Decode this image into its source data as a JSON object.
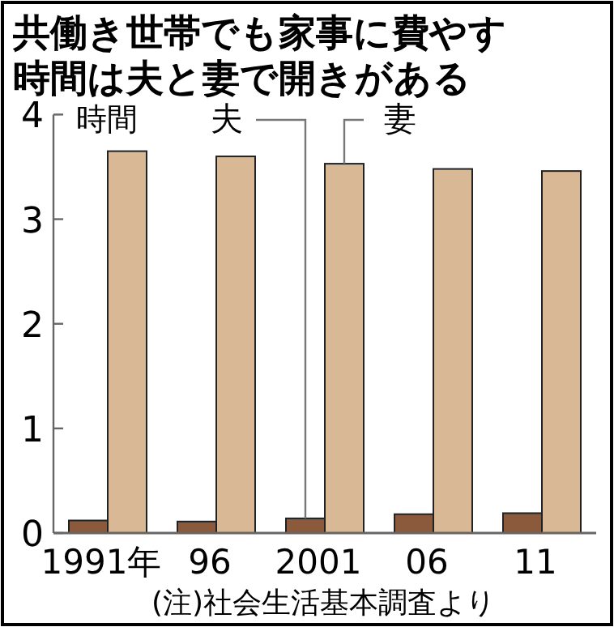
{
  "chart_data": {
    "type": "bar",
    "title": "共働き世帯でも家事に費やす時間は夫と妻で開きがある",
    "ylabel": "時間",
    "categories": [
      "1991年",
      "96",
      "2001",
      "06",
      "11"
    ],
    "series": [
      {
        "name": "夫",
        "color": "#8b5a3c",
        "values": [
          0.12,
          0.11,
          0.14,
          0.18,
          0.19
        ]
      },
      {
        "name": "妻",
        "color": "#d8b895",
        "values": [
          3.65,
          3.6,
          3.53,
          3.48,
          3.46
        ]
      }
    ],
    "ylim": [
      0,
      4
    ],
    "yticks": [
      0,
      1,
      2,
      3,
      4
    ],
    "annotations": [
      "(注)社会生活基本調査より"
    ]
  }
}
